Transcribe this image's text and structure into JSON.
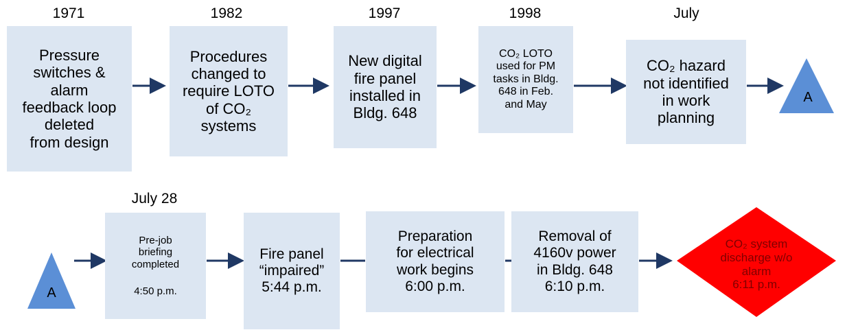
{
  "row1": {
    "events": [
      {
        "date": "1971",
        "lines": [
          "Pressure",
          "switches &",
          "alarm",
          "feedback loop",
          "deleted",
          "from design"
        ]
      },
      {
        "date": "1982",
        "lines": [
          "Procedures",
          "changed to",
          "require LOTO",
          "of CO₂",
          "systems"
        ]
      },
      {
        "date": "1997",
        "lines": [
          "New digital",
          "fire panel",
          "installed in",
          "Bldg. 648"
        ]
      },
      {
        "date": "1998",
        "lines": [
          "CO₂ LOTO",
          "used for PM",
          "tasks in Bldg.",
          "648 in Feb.",
          "and May"
        ]
      },
      {
        "date": "July",
        "lines": [
          "CO₂ hazard",
          "not identified",
          "in work",
          "planning"
        ]
      }
    ],
    "connector": "A"
  },
  "row2": {
    "date": "July 28",
    "connector": "A",
    "events": [
      {
        "lines": [
          "Pre-job",
          "briefing",
          "completed"
        ],
        "time": "4:50 p.m."
      },
      {
        "lines": [
          "Fire panel",
          "“impaired”"
        ],
        "time": "5:44 p.m."
      },
      {
        "lines": [
          "Preparation",
          "for  electrical",
          "work begins"
        ],
        "time": "6:00 p.m."
      },
      {
        "lines": [
          "Removal of",
          "4160v power",
          "in Bldg. 648"
        ],
        "time": "6:10 p.m."
      }
    ],
    "final": {
      "lines": [
        "CO₂ system",
        "discharge w/o",
        "alarm"
      ],
      "time": "6:11 p.m."
    }
  }
}
